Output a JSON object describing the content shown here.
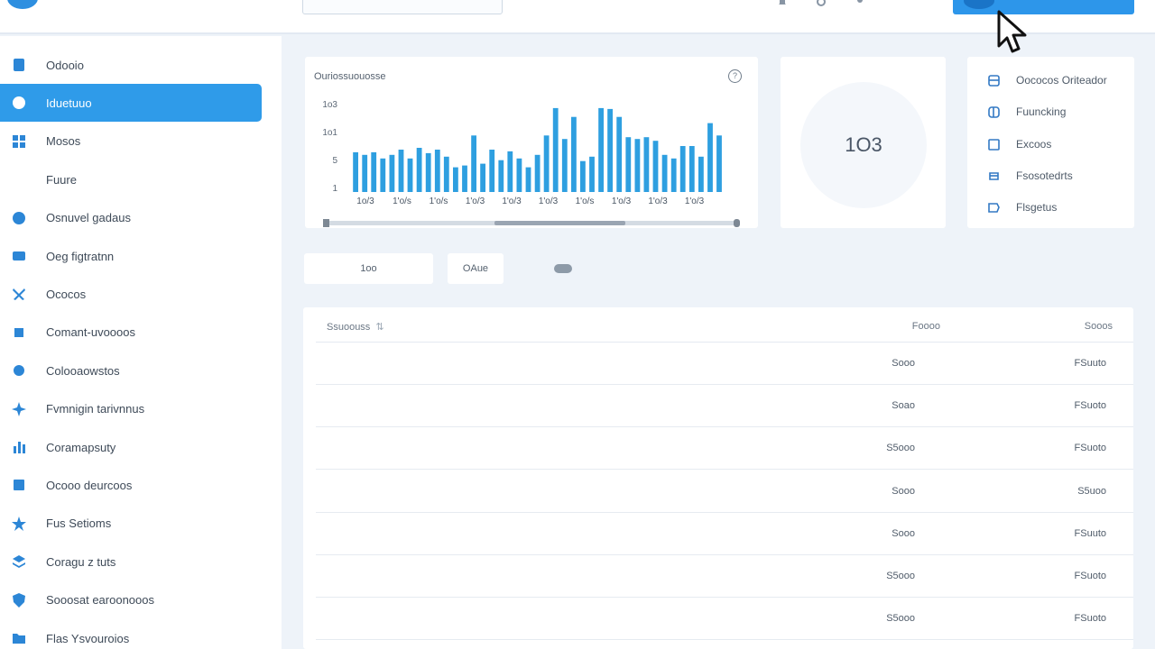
{
  "header": {
    "search_placeholder": "",
    "top_icons": [
      "bell-icon",
      "settings-icon",
      "user-icon"
    ]
  },
  "sidebar": {
    "items": [
      {
        "label": "Odooio",
        "icon": "document-icon",
        "active": false
      },
      {
        "label": "Iduetuuo",
        "icon": "dashboard-icon",
        "active": true
      },
      {
        "label": "Mosos",
        "icon": "grid-icon",
        "active": false
      },
      {
        "label": "Fuure",
        "icon": "",
        "active": false
      },
      {
        "label": "Osnuvel gadaus",
        "icon": "globe-icon",
        "active": false
      },
      {
        "label": "Oeg figtratnn",
        "icon": "card-icon",
        "active": false
      },
      {
        "label": "Ococos",
        "icon": "tools-icon",
        "active": false
      },
      {
        "label": "Comant-uvoooos",
        "icon": "puzzle-icon",
        "active": false
      },
      {
        "label": "Colooaowstos",
        "icon": "gear-icon",
        "active": false
      },
      {
        "label": "Fvmnigin tarivnnus",
        "icon": "sparkle-icon",
        "active": false
      },
      {
        "label": "Coramapsuty",
        "icon": "chart-icon",
        "active": false
      },
      {
        "label": "Ocooo deurcoos",
        "icon": "list-icon",
        "active": false
      },
      {
        "label": "Fus Setioms",
        "icon": "star-icon",
        "active": false
      },
      {
        "label": "Coragu z tuts",
        "icon": "layers-icon",
        "active": false
      },
      {
        "label": "Sooosat earoonooos",
        "icon": "shield-icon",
        "active": false
      },
      {
        "label": "Flas Ysvouroios",
        "icon": "folder-icon",
        "active": false
      }
    ]
  },
  "chart_card": {
    "title": "Ouriossuouosse",
    "info_icon": "info-icon"
  },
  "chart_data": {
    "type": "bar",
    "ylabels": [
      "1o3",
      "1o1",
      "5",
      "1"
    ],
    "xlabels": [
      "1o/3",
      "1'o/s",
      "1'o/s",
      "1'o/3",
      "1'o/3",
      "1'o/3",
      "1'o/s",
      "1'o/3",
      "1'o/3",
      "1'o/3"
    ],
    "values": [
      45,
      42,
      45,
      38,
      42,
      48,
      38,
      50,
      44,
      48,
      40,
      28,
      30,
      64,
      32,
      48,
      36,
      46,
      38,
      28,
      42,
      64,
      95,
      60,
      85,
      35,
      40,
      95,
      94,
      85,
      62,
      60,
      62,
      58,
      42,
      38,
      52,
      52,
      40,
      78,
      64
    ]
  },
  "stat": {
    "value": "1O3"
  },
  "links": [
    {
      "label": "Oococos Oriteador",
      "icon": "grid-icon"
    },
    {
      "label": "Fuuncking",
      "icon": "link-icon"
    },
    {
      "label": "Excoos",
      "icon": "clipboard-icon"
    },
    {
      "label": "Fsosotedrts",
      "icon": "refresh-icon"
    },
    {
      "label": "Flsgetus",
      "icon": "tag-icon"
    }
  ],
  "filters": [
    {
      "label": "1oo"
    },
    {
      "label": "OAue"
    },
    {
      "label": "",
      "icon": "cloud-icon"
    }
  ],
  "table": {
    "headers": [
      {
        "label": "Ssuoouss",
        "sort": "⇅"
      },
      {
        "label": "Foooo"
      },
      {
        "label": "Sooos"
      }
    ],
    "rows": [
      {
        "a": "Sooo",
        "b": "FSuuto"
      },
      {
        "a": "Soao",
        "b": "FSuoto"
      },
      {
        "a": "S5ooo",
        "b": "FSuoto"
      },
      {
        "a": "Sooo",
        "b": "S5uoo"
      },
      {
        "a": "Sooo",
        "b": "FSuuto"
      },
      {
        "a": "S5ooo",
        "b": "FSuoto"
      },
      {
        "a": "S5ooo",
        "b": "FSuoto"
      }
    ]
  },
  "colors": {
    "accent": "#2f9be9",
    "bars": "#2e9fe0",
    "background": "#eef3f9"
  }
}
